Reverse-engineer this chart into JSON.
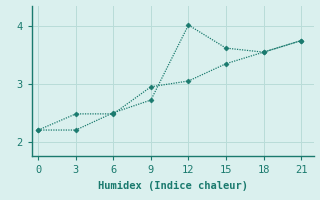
{
  "xlabel": "Humidex (Indice chaleur)",
  "x": [
    0,
    3,
    6,
    9,
    12,
    15,
    18,
    21
  ],
  "line1_y": [
    2.2,
    2.2,
    2.5,
    2.72,
    4.02,
    3.62,
    3.55,
    3.75
  ],
  "line2_y": [
    2.2,
    2.48,
    2.48,
    2.95,
    3.05,
    3.35,
    3.55,
    3.75
  ],
  "line_color": "#1a7a6e",
  "bg_color": "#daf0ee",
  "grid_color": "#b8dcd8",
  "spine_color": "#1a7a6e",
  "xlim": [
    -0.5,
    22
  ],
  "ylim": [
    1.75,
    4.35
  ],
  "xticks": [
    0,
    3,
    6,
    9,
    12,
    15,
    18,
    21
  ],
  "yticks": [
    2,
    3,
    4
  ],
  "marker": "D",
  "marker_size": 2.5,
  "line_width": 0.9,
  "font_size": 7.5
}
